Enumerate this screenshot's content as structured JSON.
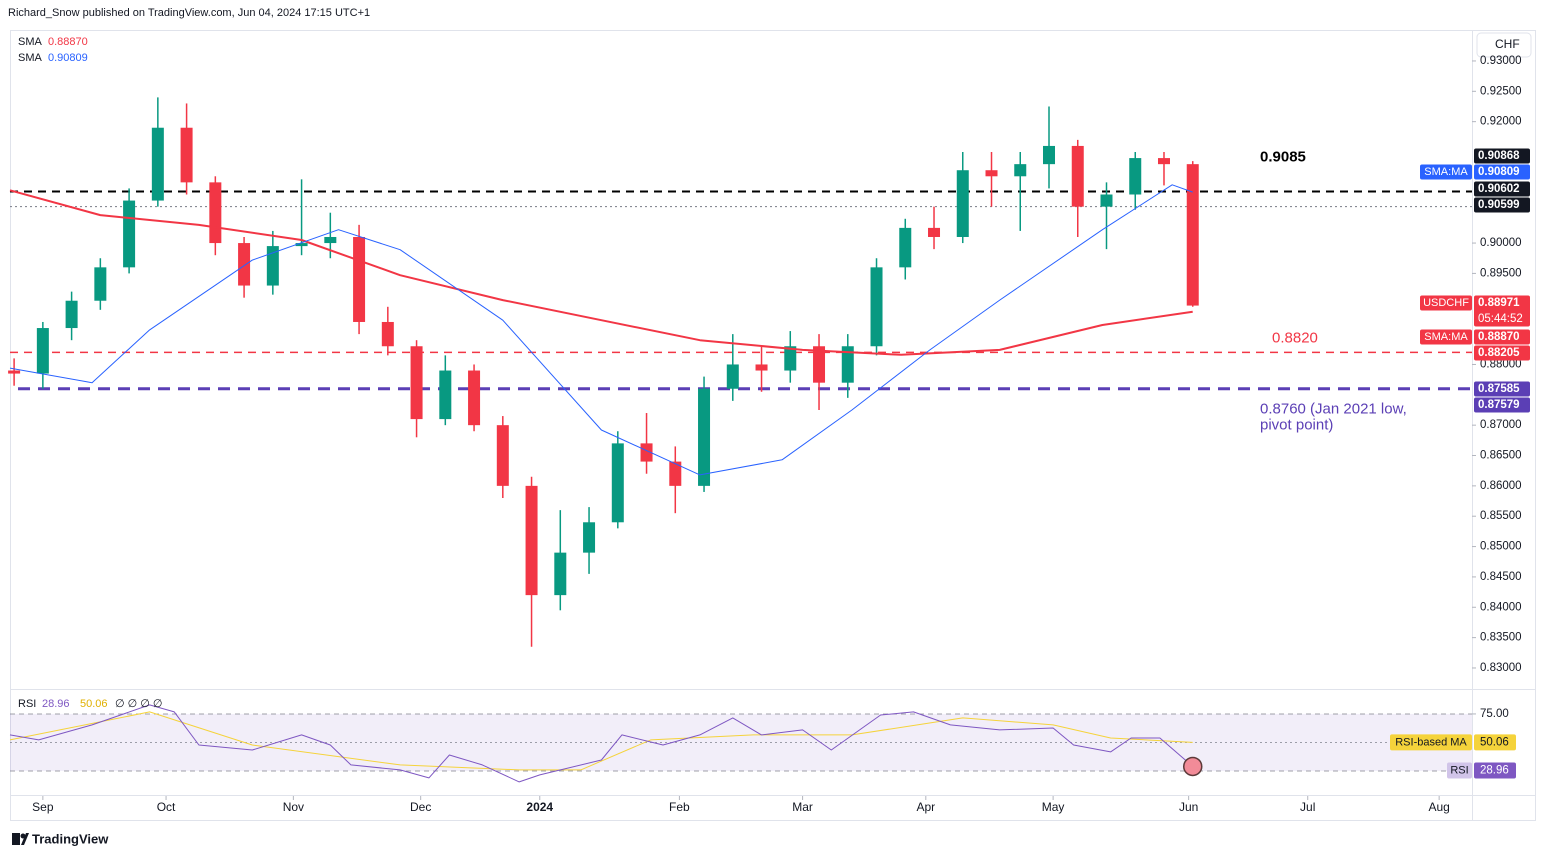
{
  "header": "Richard_Snow published on TradingView.com, Jun 04, 2024 17:15 UTC+1",
  "footer": "TradingView",
  "currency": "CHF",
  "chart_data": {
    "type": "candlestick",
    "up_color": "#089981",
    "down_color": "#f23645",
    "xlim": [
      0,
      356
    ],
    "xticks": [
      {
        "value": 8,
        "label": "Sep"
      },
      {
        "value": 38,
        "label": "Oct"
      },
      {
        "value": 69,
        "label": "Nov"
      },
      {
        "value": 100,
        "label": "Dec"
      },
      {
        "value": 129,
        "label": "2024"
      },
      {
        "value": 163,
        "label": "Feb"
      },
      {
        "value": 193,
        "label": "Mar"
      },
      {
        "value": 223,
        "label": "Apr"
      },
      {
        "value": 254,
        "label": "May"
      },
      {
        "value": 287,
        "label": "Jun"
      },
      {
        "value": 316,
        "label": "Jul"
      },
      {
        "value": 348,
        "label": "Aug"
      }
    ],
    "ylim": [
      0.8267,
      0.9351
    ],
    "yticks": [
      {
        "value": 0.93,
        "label": "0.93000"
      },
      {
        "value": 0.925,
        "label": "0.92500"
      },
      {
        "value": 0.92,
        "label": "0.92000"
      },
      {
        "value": 0.9,
        "label": "0.90000"
      },
      {
        "value": 0.895,
        "label": "0.89500"
      },
      {
        "value": 0.88,
        "label": "0.88000"
      },
      {
        "value": 0.87,
        "label": "0.87000"
      },
      {
        "value": 0.865,
        "label": "0.86500"
      },
      {
        "value": 0.86,
        "label": "0.86000"
      },
      {
        "value": 0.855,
        "label": "0.85500"
      },
      {
        "value": 0.85,
        "label": "0.85000"
      },
      {
        "value": 0.845,
        "label": "0.84500"
      },
      {
        "value": 0.84,
        "label": "0.84000"
      },
      {
        "value": 0.835,
        "label": "0.83500"
      },
      {
        "value": 0.83,
        "label": "0.83000"
      }
    ],
    "x": [
      1,
      8,
      15,
      22,
      29,
      36,
      43,
      50,
      57,
      64,
      71,
      78,
      85,
      92,
      99,
      106,
      113,
      120,
      127,
      134,
      141,
      148,
      155,
      162,
      169,
      176,
      183,
      190,
      197,
      204,
      211,
      218,
      225,
      232,
      239,
      246,
      253,
      260,
      267,
      274,
      281,
      288
    ],
    "open": [
      0.879,
      0.8785,
      0.886,
      0.8905,
      0.896,
      0.907,
      0.919,
      0.91,
      0.9,
      0.893,
      0.8995,
      0.9,
      0.901,
      0.887,
      0.883,
      0.871,
      0.879,
      0.87,
      0.86,
      0.842,
      0.849,
      0.854,
      0.867,
      0.864,
      0.86,
      0.876,
      0.88,
      0.879,
      0.883,
      0.877,
      0.883,
      0.896,
      0.9025,
      0.901,
      0.912,
      0.911,
      0.913,
      0.916,
      0.906,
      0.908,
      0.914,
      0.913
    ],
    "high": [
      0.881,
      0.887,
      0.892,
      0.8975,
      0.909,
      0.924,
      0.923,
      0.911,
      0.901,
      0.902,
      0.9105,
      0.905,
      0.903,
      0.8895,
      0.884,
      0.8815,
      0.88,
      0.8715,
      0.8615,
      0.856,
      0.8565,
      0.869,
      0.872,
      0.8665,
      0.878,
      0.885,
      0.883,
      0.8855,
      0.885,
      0.885,
      0.8975,
      0.904,
      0.906,
      0.915,
      0.915,
      0.915,
      0.9225,
      0.917,
      0.91,
      0.915,
      0.915,
      0.9135
    ],
    "low": [
      0.8765,
      0.876,
      0.884,
      0.889,
      0.895,
      0.906,
      0.908,
      0.898,
      0.891,
      0.8915,
      0.898,
      0.8975,
      0.885,
      0.8815,
      0.868,
      0.87,
      0.869,
      0.858,
      0.8335,
      0.8395,
      0.8455,
      0.853,
      0.862,
      0.8555,
      0.859,
      0.874,
      0.8755,
      0.877,
      0.8725,
      0.8745,
      0.8815,
      0.894,
      0.899,
      0.9,
      0.906,
      0.902,
      0.909,
      0.901,
      0.899,
      0.9055,
      0.9095,
      0.8895
    ],
    "close": [
      0.8785,
      0.886,
      0.8905,
      0.896,
      0.907,
      0.919,
      0.91,
      0.9,
      0.893,
      0.8995,
      0.9,
      0.901,
      0.887,
      0.883,
      0.871,
      0.879,
      0.87,
      0.86,
      0.842,
      0.849,
      0.854,
      0.867,
      0.864,
      0.86,
      0.876,
      0.88,
      0.879,
      0.883,
      0.877,
      0.883,
      0.896,
      0.9025,
      0.901,
      0.912,
      0.911,
      0.913,
      0.916,
      0.906,
      0.908,
      0.914,
      0.913,
      0.8897
    ],
    "series": [
      {
        "name": "SMA",
        "last_label": "0.88870",
        "color": "#f23645",
        "width": 2,
        "x": [
          0,
          22,
          46,
          71,
          95,
          120,
          144,
          168,
          193,
          217,
          241,
          266,
          288
        ],
        "values": [
          0.9087,
          0.9046,
          0.903,
          0.9005,
          0.8947,
          0.8906,
          0.8873,
          0.884,
          0.8824,
          0.8816,
          0.8824,
          0.8865,
          0.8887
        ]
      },
      {
        "name": "SMA",
        "last_label": "0.90809",
        "color": "#2962ff",
        "width": 1,
        "x": [
          0,
          20,
          34,
          59,
          80,
          95,
          120,
          144,
          168,
          188,
          205,
          224,
          241,
          266,
          283,
          288
        ],
        "values": [
          0.8794,
          0.877,
          0.8857,
          0.8972,
          0.9022,
          0.8989,
          0.8873,
          0.8692,
          0.8618,
          0.8643,
          0.8725,
          0.8824,
          0.8906,
          0.9022,
          0.9096,
          0.9084
        ]
      }
    ],
    "levels": [
      {
        "value": 0.9085,
        "color": "#000000",
        "dash": "8 6",
        "width": 2,
        "start": 0,
        "label": [
          "0.9085"
        ]
      },
      {
        "value": 0.906,
        "color": "#787b86",
        "dash": "2 3",
        "width": 1,
        "start": 0
      },
      {
        "value": 0.882,
        "color": "#f23645",
        "dash": "8 6",
        "width": 1.5,
        "start": 0,
        "label": [
          "0.8820"
        ]
      },
      {
        "value": 0.876,
        "color": "#5b3fb5",
        "dash": "12 8",
        "width": 3,
        "start": 2,
        "label": [
          "0.8760 (Jan 2021 low,",
          "pivot point)"
        ]
      }
    ],
    "badges": [
      {
        "text": "0.90868",
        "color": "#131722"
      },
      {
        "tag": "SMA:MA",
        "text": "0.90809",
        "color": "#2962ff"
      },
      {
        "text": "0.90602",
        "color": "#131722"
      },
      {
        "text": "0.90599",
        "color": "#131722"
      },
      {
        "tag": "USDCHF",
        "text": "0.88971",
        "countdown": "05:44:52",
        "color": "#f23645"
      },
      {
        "tag": "SMA:MA",
        "text": "0.88870",
        "color": "#f23645"
      },
      {
        "text": "0.88205",
        "color": "#f23645"
      },
      {
        "text": "0.87585",
        "color": "#5b3fb5"
      },
      {
        "text": "0.87579",
        "color": "#5b3fb5"
      }
    ],
    "rsi": {
      "name": "RSI",
      "last_label": "28.96",
      "ma_label": "50.06",
      "symbols": "∅ ∅ ∅ ∅",
      "ma_tag": "RSI-based MA",
      "color": "#7e57c2",
      "ma_color": "#f5d33b",
      "ylim": [
        8.3,
        96
      ],
      "levels": [
        75,
        50,
        25
      ],
      "yticks": [
        {
          "value": 75,
          "label": "75.00"
        }
      ],
      "x": [
        0,
        7,
        20,
        34,
        40,
        46,
        59,
        71,
        78,
        83,
        95,
        102,
        107,
        115,
        124,
        129,
        144,
        149,
        159,
        168,
        176,
        183,
        193,
        200,
        212,
        220,
        229,
        241,
        254,
        259,
        268,
        273,
        280,
        288
      ],
      "values": [
        56.6,
        52.2,
        65.4,
        82.9,
        76.8,
        47.8,
        43.4,
        56.6,
        47.8,
        30.3,
        25.9,
        18.9,
        39.0,
        30.3,
        15.4,
        21.5,
        34.6,
        56.6,
        47.8,
        56.6,
        71.5,
        56.6,
        61.0,
        43.4,
        74.1,
        76.8,
        65.4,
        61.0,
        62.7,
        47.8,
        41.7,
        53.9,
        53.9,
        28.96
      ],
      "ma_x": [
        0,
        34,
        59,
        95,
        124,
        139,
        156,
        181,
        205,
        232,
        254,
        268,
        288
      ],
      "ma_values": [
        52.2,
        76.8,
        47.8,
        30.3,
        25.9,
        25.9,
        52.2,
        56.6,
        56.6,
        71.5,
        65.4,
        53.9,
        50.06
      ]
    }
  }
}
